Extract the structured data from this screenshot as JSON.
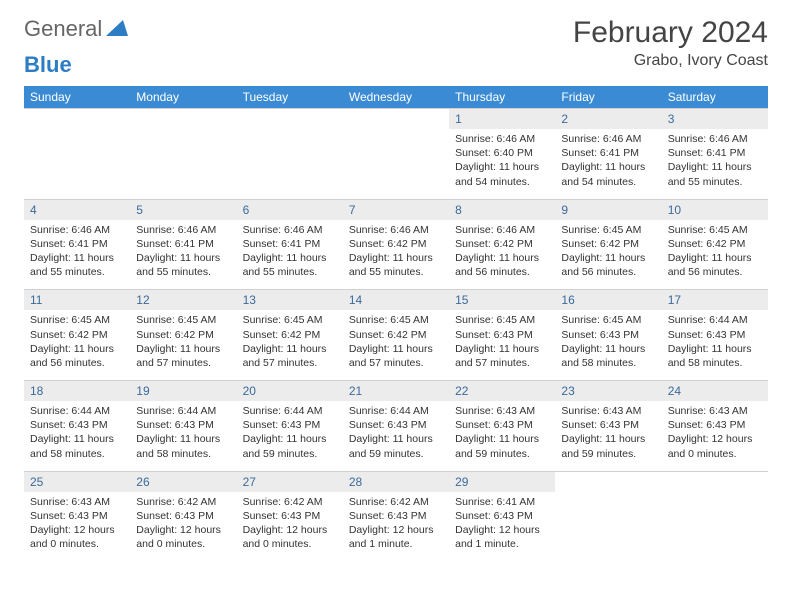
{
  "logo": {
    "part1": "General",
    "part2": "Blue"
  },
  "title": "February 2024",
  "location": "Grabo, Ivory Coast",
  "colors": {
    "header_bg": "#3b8bd4",
    "header_text": "#ffffff",
    "daynum_bg": "#ececec",
    "daynum_text": "#3b6a9b",
    "body_text": "#333333",
    "logo_blue": "#2d7dc4",
    "logo_gray": "#666666"
  },
  "weekdays": [
    "Sunday",
    "Monday",
    "Tuesday",
    "Wednesday",
    "Thursday",
    "Friday",
    "Saturday"
  ],
  "weeks": [
    [
      null,
      null,
      null,
      null,
      {
        "n": "1",
        "sr": "6:46 AM",
        "ss": "6:40 PM",
        "dl": "11 hours and 54 minutes."
      },
      {
        "n": "2",
        "sr": "6:46 AM",
        "ss": "6:41 PM",
        "dl": "11 hours and 54 minutes."
      },
      {
        "n": "3",
        "sr": "6:46 AM",
        "ss": "6:41 PM",
        "dl": "11 hours and 55 minutes."
      }
    ],
    [
      {
        "n": "4",
        "sr": "6:46 AM",
        "ss": "6:41 PM",
        "dl": "11 hours and 55 minutes."
      },
      {
        "n": "5",
        "sr": "6:46 AM",
        "ss": "6:41 PM",
        "dl": "11 hours and 55 minutes."
      },
      {
        "n": "6",
        "sr": "6:46 AM",
        "ss": "6:41 PM",
        "dl": "11 hours and 55 minutes."
      },
      {
        "n": "7",
        "sr": "6:46 AM",
        "ss": "6:42 PM",
        "dl": "11 hours and 55 minutes."
      },
      {
        "n": "8",
        "sr": "6:46 AM",
        "ss": "6:42 PM",
        "dl": "11 hours and 56 minutes."
      },
      {
        "n": "9",
        "sr": "6:45 AM",
        "ss": "6:42 PM",
        "dl": "11 hours and 56 minutes."
      },
      {
        "n": "10",
        "sr": "6:45 AM",
        "ss": "6:42 PM",
        "dl": "11 hours and 56 minutes."
      }
    ],
    [
      {
        "n": "11",
        "sr": "6:45 AM",
        "ss": "6:42 PM",
        "dl": "11 hours and 56 minutes."
      },
      {
        "n": "12",
        "sr": "6:45 AM",
        "ss": "6:42 PM",
        "dl": "11 hours and 57 minutes."
      },
      {
        "n": "13",
        "sr": "6:45 AM",
        "ss": "6:42 PM",
        "dl": "11 hours and 57 minutes."
      },
      {
        "n": "14",
        "sr": "6:45 AM",
        "ss": "6:42 PM",
        "dl": "11 hours and 57 minutes."
      },
      {
        "n": "15",
        "sr": "6:45 AM",
        "ss": "6:43 PM",
        "dl": "11 hours and 57 minutes."
      },
      {
        "n": "16",
        "sr": "6:45 AM",
        "ss": "6:43 PM",
        "dl": "11 hours and 58 minutes."
      },
      {
        "n": "17",
        "sr": "6:44 AM",
        "ss": "6:43 PM",
        "dl": "11 hours and 58 minutes."
      }
    ],
    [
      {
        "n": "18",
        "sr": "6:44 AM",
        "ss": "6:43 PM",
        "dl": "11 hours and 58 minutes."
      },
      {
        "n": "19",
        "sr": "6:44 AM",
        "ss": "6:43 PM",
        "dl": "11 hours and 58 minutes."
      },
      {
        "n": "20",
        "sr": "6:44 AM",
        "ss": "6:43 PM",
        "dl": "11 hours and 59 minutes."
      },
      {
        "n": "21",
        "sr": "6:44 AM",
        "ss": "6:43 PM",
        "dl": "11 hours and 59 minutes."
      },
      {
        "n": "22",
        "sr": "6:43 AM",
        "ss": "6:43 PM",
        "dl": "11 hours and 59 minutes."
      },
      {
        "n": "23",
        "sr": "6:43 AM",
        "ss": "6:43 PM",
        "dl": "11 hours and 59 minutes."
      },
      {
        "n": "24",
        "sr": "6:43 AM",
        "ss": "6:43 PM",
        "dl": "12 hours and 0 minutes."
      }
    ],
    [
      {
        "n": "25",
        "sr": "6:43 AM",
        "ss": "6:43 PM",
        "dl": "12 hours and 0 minutes."
      },
      {
        "n": "26",
        "sr": "6:42 AM",
        "ss": "6:43 PM",
        "dl": "12 hours and 0 minutes."
      },
      {
        "n": "27",
        "sr": "6:42 AM",
        "ss": "6:43 PM",
        "dl": "12 hours and 0 minutes."
      },
      {
        "n": "28",
        "sr": "6:42 AM",
        "ss": "6:43 PM",
        "dl": "12 hours and 1 minute."
      },
      {
        "n": "29",
        "sr": "6:41 AM",
        "ss": "6:43 PM",
        "dl": "12 hours and 1 minute."
      },
      null,
      null
    ]
  ],
  "labels": {
    "sunrise": "Sunrise:",
    "sunset": "Sunset:",
    "daylight": "Daylight:"
  }
}
